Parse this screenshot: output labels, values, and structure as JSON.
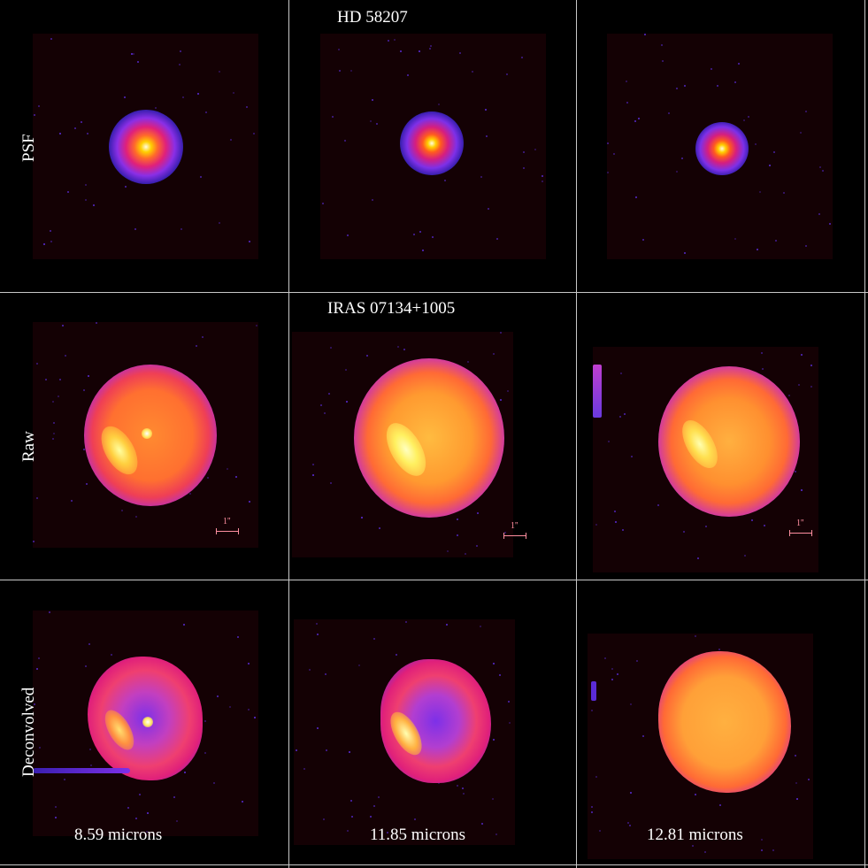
{
  "figure": {
    "top_title": "HD 58207",
    "middle_title": "IRAS 07134+1005",
    "row_labels": [
      "PSF",
      "Raw",
      "Deconvolved"
    ],
    "column_labels": [
      "8.59 microns",
      "11.85 microns",
      "12.81 microns"
    ],
    "scalebar_label": "1''"
  }
}
